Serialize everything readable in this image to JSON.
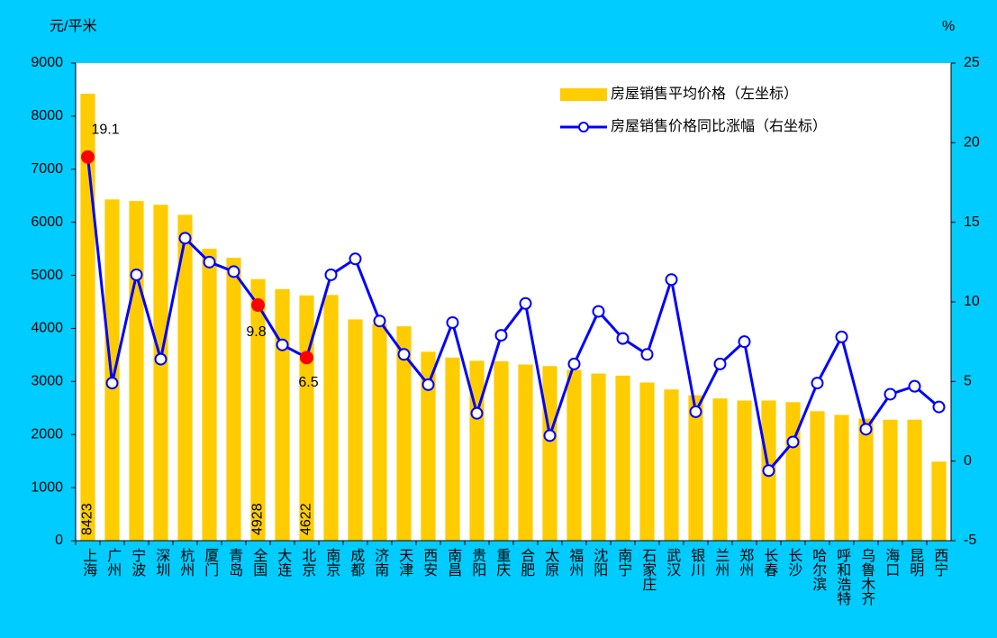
{
  "chart_data": {
    "type": "bar_line",
    "y_label": "元/平米",
    "y2_label": "%",
    "categories": [
      "上海",
      "广州",
      "宁波",
      "深圳",
      "杭州",
      "厦门",
      "青岛",
      "全国",
      "大连",
      "北京",
      "南京",
      "成都",
      "济南",
      "天津",
      "西安",
      "南昌",
      "贵阳",
      "重庆",
      "合肥",
      "太原",
      "福州",
      "沈阳",
      "南宁",
      "石家庄",
      "武汉",
      "银川",
      "兰州",
      "郑州",
      "长春",
      "长沙",
      "哈尔滨",
      "呼和浩特",
      "乌鲁木齐",
      "海口",
      "昆明",
      "西宁"
    ],
    "series": [
      {
        "name": "房屋销售平均价格（左坐标）",
        "type": "bar",
        "color": "#ffcc00",
        "values": [
          8423,
          6430,
          6400,
          6330,
          6140,
          5500,
          5330,
          4928,
          4740,
          4622,
          4630,
          4170,
          4080,
          4040,
          3560,
          3450,
          3390,
          3380,
          3320,
          3290,
          3220,
          3150,
          3110,
          2980,
          2850,
          2740,
          2680,
          2640,
          2640,
          2610,
          2440,
          2370,
          2300,
          2280,
          2280,
          1490
        ]
      },
      {
        "name": "房屋销售价格同比涨幅（右坐标）",
        "type": "line",
        "axis": "y2",
        "color": "#0000ff",
        "values": [
          19.1,
          4.9,
          11.7,
          6.4,
          14.0,
          12.5,
          11.9,
          9.8,
          7.3,
          6.5,
          11.7,
          12.7,
          8.8,
          6.7,
          4.8,
          8.7,
          3.0,
          7.9,
          9.9,
          1.6,
          6.1,
          9.4,
          7.7,
          6.7,
          11.4,
          3.1,
          6.1,
          7.5,
          -0.6,
          1.2,
          4.9,
          7.8,
          2.0,
          4.2,
          4.7,
          3.4
        ]
      }
    ],
    "highlight_indices": [
      0,
      7,
      9
    ],
    "highlight_color": "#ff0000",
    "ylim": [
      0,
      9000
    ],
    "yticks": [
      0,
      1000,
      2000,
      3000,
      4000,
      5000,
      6000,
      7000,
      8000,
      9000
    ],
    "y2lim": [
      -5,
      25
    ],
    "y2ticks": [
      -5,
      0,
      5,
      10,
      15,
      20,
      25
    ],
    "legend": "upper right",
    "grid": false
  }
}
